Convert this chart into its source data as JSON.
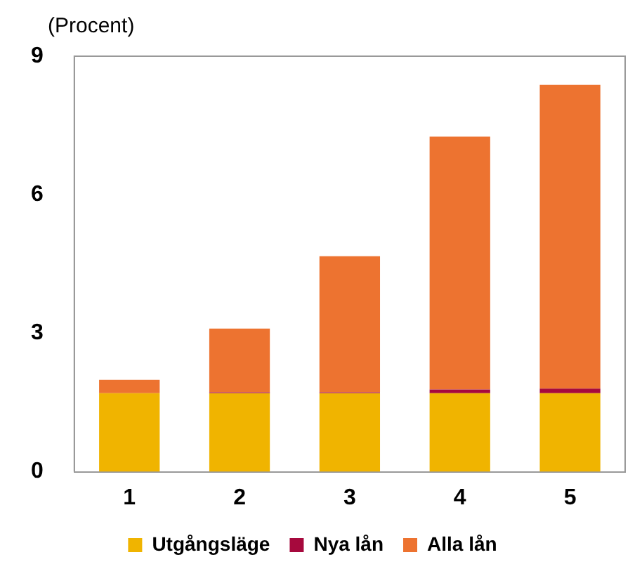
{
  "chart_data": {
    "type": "bar",
    "stacked": true,
    "ylabel": "(Procent)",
    "categories": [
      "1",
      "2",
      "3",
      "4",
      "5"
    ],
    "series": [
      {
        "name": "Utgångsläge",
        "color": "#f0b400",
        "values": [
          1.7,
          1.7,
          1.7,
          1.7,
          1.7
        ]
      },
      {
        "name": "Nya lån",
        "color": "#a6093d",
        "values": [
          0,
          0.02,
          0.02,
          0.08,
          0.1
        ]
      },
      {
        "name": "Alla lån",
        "color": "#ed7330",
        "values": [
          0.29,
          1.38,
          2.95,
          5.48,
          6.58
        ]
      }
    ],
    "ylim": [
      0,
      9
    ],
    "yticks": [
      0,
      3,
      6,
      9
    ],
    "grid": false,
    "legend": "bottom"
  }
}
